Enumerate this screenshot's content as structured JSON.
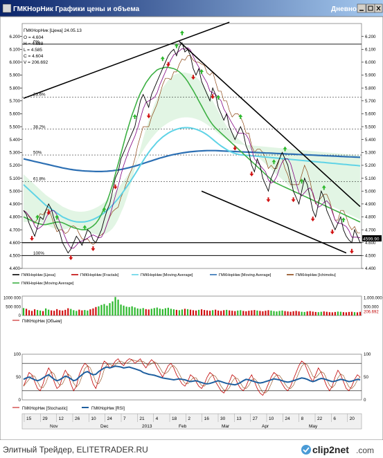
{
  "window": {
    "title": "ГМКНорНик Графики цены и объема",
    "period": "Дневной",
    "colors": {
      "titlebar": "#0a246a",
      "titlebar2": "#3a6ea5"
    }
  },
  "price_info": {
    "header": "ГМКНорНик [Цена] 24.05.13",
    "lines": [
      "O = 4.604",
      "H = 4.688",
      "L = 4.585",
      "C = 4.604",
      "V = 206.692"
    ],
    "current_price_label": "4599.90"
  },
  "legend": [
    {
      "label": "ГМКНорНик [Цена]",
      "color": "#000000"
    },
    {
      "label": "ГМКНорНик [Fractals]",
      "color": "#c00000"
    },
    {
      "label": "ГМКНорНик [Moving Average]",
      "color": "#5fd3e6"
    },
    {
      "label": "ГМКНорНик [Moving Average]",
      "color": "#2c6fb3"
    },
    {
      "label": "ГМКНорНик [Ichimoku]",
      "color": "#8b4513"
    },
    {
      "label": "ГМКНорНик [Moving Average]",
      "color": "#3cb043"
    }
  ],
  "volume_legend": [
    {
      "label": "ГМКНорНик [Объем]",
      "color": "#c00000"
    }
  ],
  "osc_legend": [
    {
      "label": "ГМКНорНик [Stochastic]",
      "color": "#c00000"
    },
    {
      "label": "ГМКНорНик [RSI]",
      "color": "#1f5f9f"
    }
  ],
  "footer": {
    "left_text": "Элитный Трейдер, ELITETRADER.RU",
    "brand": "clip2net",
    "brand_suffix": ".com"
  },
  "chart_data": [
    {
      "type": "line",
      "name": "price",
      "ylim": [
        4400,
        6300
      ],
      "yticks": [
        6200,
        6100,
        6000,
        5900,
        5800,
        5700,
        5600,
        5500,
        5400,
        5300,
        5200,
        5100,
        5000,
        4900,
        4800,
        4700,
        4600,
        4500,
        4400
      ],
      "ytick_labels": [
        "6.200",
        "6.100",
        "6.000",
        "5.900",
        "5.800",
        "5.700",
        "5.600",
        "5.500",
        "5.400",
        "5.300",
        "5.200",
        "5.100",
        "5.000",
        "4.900",
        "4.800",
        "4.700",
        "4.600",
        "4.500",
        "4.400"
      ],
      "fib_levels": [
        {
          "label": "0%",
          "value": 6140
        },
        {
          "label": "23.6%",
          "value": 5730
        },
        {
          "label": "38.2%",
          "value": 5480
        },
        {
          "label": "50%",
          "value": 5280
        },
        {
          "label": "61.8%",
          "value": 5075
        },
        {
          "label": "100%",
          "value": 4500
        }
      ],
      "support_level": 4600,
      "close": [
        4850,
        4820,
        4750,
        4700,
        4650,
        4720,
        4800,
        4780,
        4850,
        4900,
        4860,
        4780,
        4720,
        4680,
        4600,
        4560,
        4520,
        4550,
        4600,
        4650,
        4620,
        4580,
        4640,
        4700,
        4680,
        4620,
        4600,
        4650,
        4700,
        4780,
        4850,
        4900,
        5000,
        5100,
        5150,
        5250,
        5300,
        5350,
        5400,
        5450,
        5500,
        5600,
        5700,
        5750,
        5700,
        5650,
        5750,
        5800,
        5850,
        5900,
        5950,
        6000,
        6050,
        6080,
        6100,
        6050,
        6120,
        6150,
        6080,
        6100,
        6050,
        5950,
        5900,
        5950,
        5850,
        5800,
        5750,
        5700,
        5800,
        5750,
        5650,
        5600,
        5550,
        5600,
        5500,
        5450,
        5400,
        5450,
        5500,
        5450,
        5350,
        5300,
        5200,
        5150,
        5250,
        5200,
        5100,
        5050,
        5000,
        5100,
        5150,
        5200,
        5250,
        5300,
        5250,
        5200,
        5100,
        5000,
        4950,
        4900,
        5000,
        5100,
        5050,
        4950,
        4850,
        4800,
        4900,
        5000,
        4950,
        4850,
        4800,
        4750,
        4700,
        4750,
        4800,
        4700,
        4650,
        4620,
        4600,
        4700,
        4650,
        4600
      ],
      "ma_green": [
        4800,
        4790,
        4780,
        4770,
        4760,
        4750,
        4745,
        4740,
        4740,
        4745,
        4750,
        4755,
        4760,
        4760,
        4755,
        4745,
        4735,
        4725,
        4715,
        4710,
        4705,
        4700,
        4700,
        4705,
        4715,
        4730,
        4750,
        4780,
        4820,
        4870,
        4920,
        4980,
        5050,
        5130,
        5210,
        5290,
        5370,
        5450,
        5520,
        5590,
        5650,
        5710,
        5760,
        5800,
        5840,
        5870,
        5900,
        5920,
        5940,
        5950,
        5955,
        5960,
        5960,
        5955,
        5950,
        5940,
        5925,
        5905,
        5880,
        5850,
        5815,
        5780,
        5740,
        5700,
        5660,
        5620,
        5580,
        5545,
        5515,
        5490,
        5470,
        5450,
        5430,
        5410,
        5390,
        5370,
        5350,
        5330,
        5310,
        5290,
        5270,
        5250,
        5230,
        5210,
        5190,
        5170,
        5150,
        5130,
        5110,
        5090,
        5070,
        5060,
        5050,
        5040,
        5030,
        5020,
        5010,
        5000,
        4990,
        4980,
        4970,
        4960,
        4950,
        4940,
        4930,
        4920,
        4910,
        4900,
        4890,
        4880,
        4870,
        4860,
        4850,
        4840,
        4830,
        4820,
        4810,
        4800,
        4790,
        4780,
        4770,
        4760
      ],
      "ma_light": [
        5050,
        5030,
        5010,
        4990,
        4970,
        4950,
        4930,
        4910,
        4890,
        4875,
        4860,
        4845,
        4830,
        4815,
        4800,
        4790,
        4780,
        4772,
        4766,
        4762,
        4760,
        4760,
        4762,
        4766,
        4772,
        4780,
        4790,
        4802,
        4816,
        4832,
        4850,
        4870,
        4892,
        4916,
        4942,
        4970,
        5000,
        5030,
        5062,
        5095,
        5130,
        5165,
        5200,
        5235,
        5270,
        5300,
        5330,
        5355,
        5380,
        5400,
        5420,
        5435,
        5450,
        5462,
        5472,
        5480,
        5486,
        5490,
        5492,
        5492,
        5490,
        5486,
        5480,
        5472,
        5462,
        5450,
        5436,
        5420,
        5402,
        5384,
        5366,
        5350,
        5336,
        5322,
        5310,
        5300,
        5292,
        5286,
        5282,
        5280,
        5278,
        5276,
        5274,
        5272,
        5270,
        5268,
        5266,
        5264,
        5262,
        5260,
        5258,
        5256,
        5254,
        5252,
        5250,
        5248,
        5246,
        5244,
        5242,
        5240,
        5238,
        5236,
        5234,
        5232,
        5230,
        5228,
        5226,
        5224,
        5222,
        5220,
        5218,
        5216,
        5214,
        5212,
        5210,
        5208,
        5206,
        5204,
        5202,
        5200,
        5198,
        5196
      ],
      "ma_blue": [
        5250,
        5245,
        5240,
        5235,
        5230,
        5225,
        5220,
        5215,
        5210,
        5205,
        5200,
        5195,
        5190,
        5185,
        5180,
        5176,
        5172,
        5168,
        5165,
        5162,
        5160,
        5158,
        5156,
        5155,
        5154,
        5153,
        5152,
        5152,
        5152,
        5153,
        5154,
        5156,
        5158,
        5161,
        5164,
        5168,
        5172,
        5177,
        5182,
        5188,
        5194,
        5200,
        5207,
        5214,
        5221,
        5228,
        5235,
        5242,
        5249,
        5256,
        5262,
        5268,
        5274,
        5279,
        5284,
        5288,
        5292,
        5296,
        5299,
        5302,
        5305,
        5307,
        5309,
        5311,
        5312,
        5313,
        5314,
        5314,
        5314,
        5314,
        5313,
        5312,
        5311,
        5310,
        5309,
        5308,
        5307,
        5306,
        5305,
        5304,
        5303,
        5302,
        5301,
        5300,
        5299,
        5298,
        5297,
        5296,
        5295,
        5294,
        5293,
        5292,
        5291,
        5290,
        5289,
        5288,
        5287,
        5286,
        5285,
        5284,
        5283,
        5282,
        5281,
        5280,
        5279,
        5278,
        5277,
        5276,
        5275,
        5274,
        5273,
        5272,
        5271,
        5270,
        5269,
        5268,
        5267,
        5266,
        5265,
        5264,
        5263,
        5262
      ],
      "fractals_up_idx": [
        5,
        12,
        22,
        29,
        40,
        50,
        55,
        57,
        64,
        70,
        78,
        90,
        94,
        100,
        108,
        115
      ],
      "fractals_down_idx": [
        3,
        9,
        17,
        25,
        33,
        45,
        52,
        61,
        68,
        76,
        82,
        88,
        97,
        104,
        111,
        118
      ],
      "xtick_labels": [
        "15",
        "29",
        "12",
        "26",
        "10",
        "24",
        "7",
        "21",
        "4",
        "18",
        "2",
        "16",
        "30",
        "13",
        "27",
        "10",
        "24",
        "8",
        "22",
        "6",
        "20"
      ],
      "month_labels": [
        "Nov",
        "Dec",
        "2013",
        "Feb",
        "Mar",
        "Apr",
        "May"
      ],
      "trendlines": [
        {
          "x0": 0,
          "y0": 5720,
          "x1": 74,
          "y1": 6310
        },
        {
          "x0": 56,
          "y0": 6160,
          "x1": 121,
          "y1": 4880
        },
        {
          "x0": 64,
          "y0": 5000,
          "x1": 116,
          "y1": 4520
        }
      ]
    },
    {
      "type": "bar",
      "name": "volume",
      "ylim": [
        0,
        1100000
      ],
      "ytick_labels": [
        "1.000.000",
        "500.000"
      ],
      "left_tick_labels": [
        "1000 000",
        "500 000",
        "0"
      ],
      "current_value": "206.692",
      "values": [
        420000,
        380000,
        300000,
        260000,
        350000,
        310000,
        280000,
        250000,
        400000,
        330000,
        290000,
        270000,
        360000,
        300000,
        280000,
        320000,
        410000,
        370000,
        300000,
        260000,
        330000,
        290000,
        310000,
        280000,
        350000,
        400000,
        480000,
        520000,
        600000,
        650000,
        560000,
        700000,
        800000,
        1050000,
        900000,
        620000,
        560000,
        500000,
        480000,
        520000,
        460000,
        400000,
        380000,
        420000,
        360000,
        340000,
        380000,
        420000,
        450000,
        390000,
        360000,
        410000,
        440000,
        380000,
        350000,
        320000,
        300000,
        340000,
        380000,
        360000,
        330000,
        300000,
        280000,
        320000,
        350000,
        310000,
        290000,
        270000,
        300000,
        330000,
        280000,
        260000,
        300000,
        320000,
        290000,
        270000,
        250000,
        280000,
        300000,
        260000,
        240000,
        270000,
        290000,
        310000,
        280000,
        260000,
        240000,
        270000,
        300000,
        280000,
        250000,
        230000,
        260000,
        280000,
        250000,
        230000,
        210000,
        240000,
        260000,
        230000,
        210000,
        200000,
        230000,
        250000,
        220000,
        200000,
        190000,
        210000,
        230000,
        210000,
        190000,
        180000,
        200000,
        220000,
        210000,
        190000,
        180000,
        200000,
        210000,
        190000,
        180000,
        206692
      ]
    },
    {
      "type": "line",
      "name": "oscillators",
      "ylim": [
        0,
        100
      ],
      "levels": [
        80,
        20
      ],
      "ytick_labels": [
        "100",
        "50",
        "0"
      ],
      "stochastic": [
        30,
        45,
        60,
        55,
        40,
        25,
        20,
        35,
        55,
        70,
        60,
        40,
        25,
        30,
        50,
        65,
        55,
        35,
        20,
        30,
        55,
        70,
        80,
        75,
        55,
        35,
        25,
        45,
        70,
        85,
        80,
        70,
        75,
        85,
        90,
        80,
        75,
        85,
        90,
        88,
        80,
        85,
        90,
        78,
        70,
        80,
        88,
        82,
        70,
        60,
        50,
        62,
        75,
        80,
        70,
        55,
        45,
        35,
        30,
        40,
        55,
        50,
        40,
        30,
        25,
        35,
        50,
        60,
        55,
        40,
        30,
        20,
        15,
        25,
        40,
        55,
        50,
        35,
        25,
        20,
        30,
        45,
        55,
        40,
        25,
        15,
        10,
        20,
        35,
        50,
        60,
        55,
        45,
        35,
        25,
        20,
        30,
        45,
        60,
        75,
        85,
        80,
        65,
        50,
        40,
        55,
        70,
        60,
        45,
        30,
        20,
        30,
        50,
        65,
        55,
        40,
        25,
        20,
        30,
        45,
        55,
        50
      ],
      "rsi": [
        45,
        48,
        50,
        47,
        44,
        42,
        44,
        48,
        52,
        55,
        50,
        45,
        42,
        44,
        48,
        52,
        50,
        46,
        42,
        44,
        50,
        55,
        60,
        62,
        58,
        55,
        56,
        62,
        66,
        70,
        72,
        70,
        72,
        74,
        73,
        72,
        70,
        71,
        72,
        70,
        68,
        66,
        64,
        60,
        58,
        56,
        55,
        54,
        52,
        50,
        48,
        47,
        46,
        45,
        44,
        45,
        46,
        45,
        44,
        42,
        40,
        41,
        42,
        40,
        38,
        36,
        35,
        36,
        38,
        40,
        42,
        40,
        38,
        36,
        35,
        34,
        33,
        35,
        38,
        42,
        45,
        44,
        42,
        40,
        38,
        37,
        38,
        40,
        42,
        44,
        46,
        45,
        44,
        42,
        40,
        39,
        40,
        42,
        44,
        46,
        48,
        47,
        45,
        42,
        40,
        42,
        45,
        47,
        46,
        44,
        42,
        40,
        41,
        43,
        45,
        44,
        42,
        40,
        41,
        43,
        45,
        44
      ]
    }
  ]
}
